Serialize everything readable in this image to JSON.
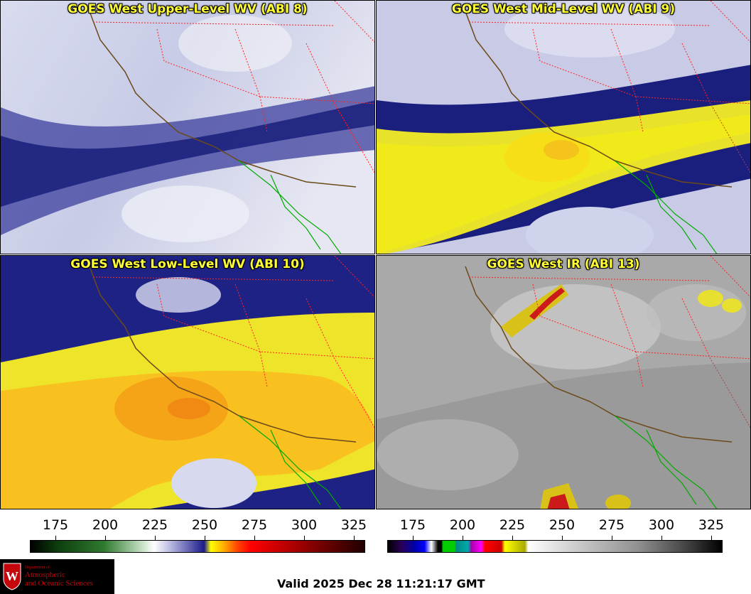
{
  "panels": [
    {
      "id": "p1",
      "title": "GOES West Upper-Level WV (ABI 8)"
    },
    {
      "id": "p2",
      "title": "GOES West Mid-Level WV (ABI 9)"
    },
    {
      "id": "p3",
      "title": "GOES West Low-Level WV (ABI 10)"
    },
    {
      "id": "p4",
      "title": "GOES West IR (ABI 13)"
    }
  ],
  "colorbar_wv": {
    "ticks": [
      "175",
      "200",
      "225",
      "250",
      "275",
      "300",
      "325"
    ]
  },
  "colorbar_ir": {
    "ticks": [
      "175",
      "200",
      "225",
      "250",
      "275",
      "300",
      "325"
    ]
  },
  "logo": {
    "dept": "Department of",
    "line1": "Atmospheric",
    "line2": "and Oceanic Sciences",
    "shield_letter": "W"
  },
  "valid_text": "Valid 2025 Dec 28 11:21:17 GMT",
  "colors": {
    "title": "#ffff33",
    "state_border": "#ff2222",
    "coast": "#5a3a1a",
    "mexico_coast": "#00aa00",
    "logo_red": "#c5050c"
  }
}
